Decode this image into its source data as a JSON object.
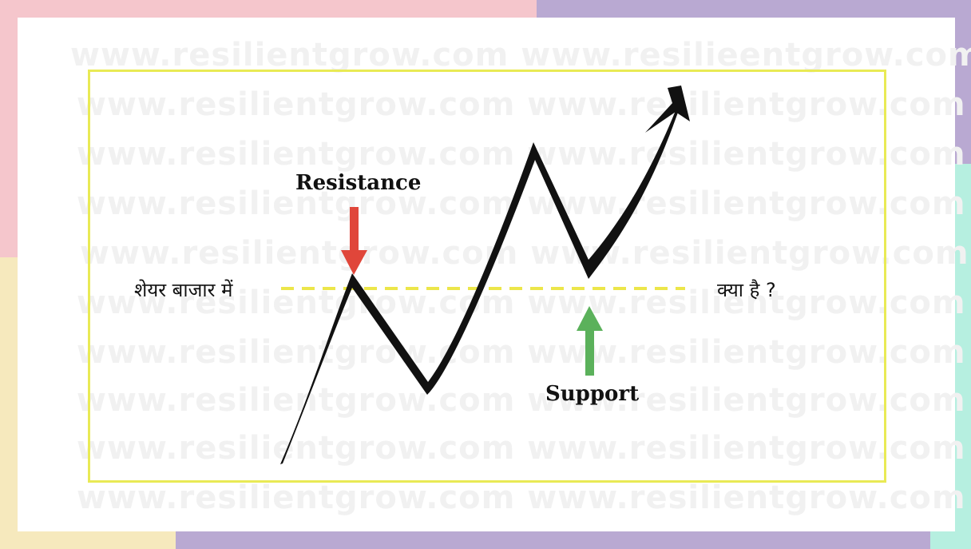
{
  "watermark_text": "www.resilientgrow.com www.resilientgrow.com",
  "watermark_text_alt": "www.resilientgrow.com www.resilieentgrow.com",
  "labels": {
    "resistance": "Resistance",
    "support": "Support",
    "left_text": "शेयर बाजार में",
    "right_text": "क्या है ?"
  },
  "colors": {
    "resistance_arrow": "#e0463a",
    "support_arrow": "#5bb15b",
    "level_line": "#ece64a",
    "frame": "#e9ea55",
    "price_line": "#111111"
  }
}
